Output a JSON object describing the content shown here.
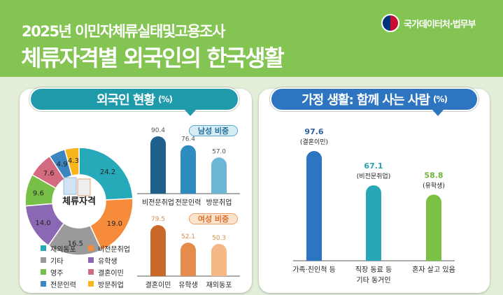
{
  "header": {
    "subtitle": "2025년 이민자체류실태및고용조사",
    "title": "체류자격별 외국인의 한국생활",
    "logo_text": "국가데이터처·법무부",
    "bg_color": "#84c452"
  },
  "left_panel": {
    "title": "외국인 현황",
    "unit": "(%)",
    "donut_center_label": "체류자격",
    "male_tag": "남성 비중",
    "female_tag": "여성 비중"
  },
  "right_panel": {
    "title": "가정 생활: 함께 사는 사람",
    "unit": "(%)"
  },
  "chart_data": [
    {
      "type": "pie",
      "variant": "donut",
      "center_label": "체류자격",
      "categories": [
        "재외동포",
        "비전문취업",
        "기타",
        "유학생",
        "영주",
        "결혼이민",
        "전문인력",
        "방문취업"
      ],
      "values": [
        24.2,
        19.0,
        16.5,
        14.0,
        9.6,
        7.6,
        4.9,
        4.3
      ],
      "colors": [
        "#26a9b9",
        "#f58b3b",
        "#9a9a9a",
        "#8a68b4",
        "#77bf46",
        "#d46a7f",
        "#3b86c0",
        "#f9b51c"
      ],
      "legend_order": [
        "재외동포",
        "비전문취업",
        "기타",
        "유학생",
        "영주",
        "결혼이민",
        "전문인력",
        "방문취업"
      ],
      "legend": "bottom"
    },
    {
      "type": "bar",
      "title": "남성 비중",
      "categories": [
        "비전문취업",
        "전문인력",
        "방문취업"
      ],
      "values": [
        90.4,
        76.4,
        57.0
      ],
      "colors": [
        "#1f5f8b",
        "#2f8cc1",
        "#6cb7d6"
      ],
      "label_color": "#555555"
    },
    {
      "type": "bar",
      "title": "여성 비중",
      "categories": [
        "결혼이민",
        "유학생",
        "재외동포"
      ],
      "values": [
        79.5,
        52.1,
        50.3
      ],
      "colors": [
        "#c8692a",
        "#e58c4c",
        "#f5b987"
      ],
      "label_color": "#d98a4a"
    },
    {
      "type": "bar",
      "title": "가정 생활: 함께 사는 사람 (%)",
      "categories": [
        "가족·친인척 등",
        "직장 동료 등 기타 동거인",
        "혼자 살고 있음"
      ],
      "category_lines": [
        [
          "가족·친인척 등"
        ],
        [
          "직장 동료 등",
          "기타 동거인"
        ],
        [
          "혼자 살고 있음"
        ]
      ],
      "values": [
        97.6,
        67.1,
        58.8
      ],
      "value_notes": [
        "(결혼이민)",
        "(비전문취업)",
        "(유학생)"
      ],
      "colors": [
        "#2e75c1",
        "#2aa7b7",
        "#7bc143"
      ],
      "label_colors": [
        "#2e5f9e",
        "#2aa0b0",
        "#6fb53c"
      ]
    }
  ]
}
